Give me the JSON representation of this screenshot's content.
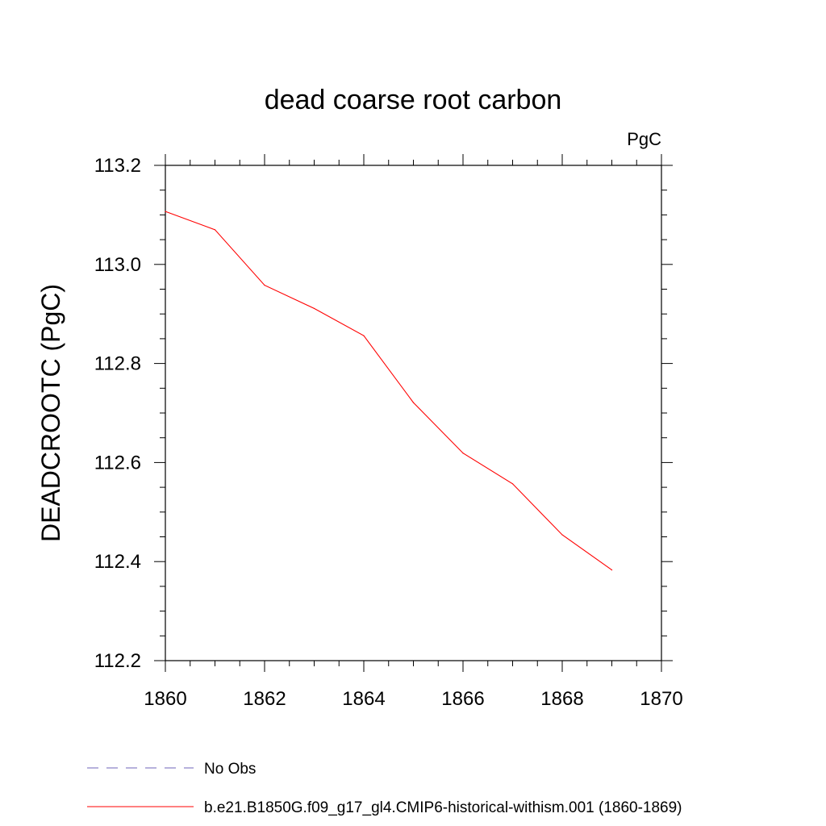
{
  "chart_data": {
    "type": "line",
    "title": "dead coarse root carbon",
    "units_label": "PgC",
    "xlabel": "",
    "ylabel": "DEADCROOTC  (PgC)",
    "xlim": [
      1860,
      1870
    ],
    "ylim": [
      112.2,
      113.2
    ],
    "x_ticks": [
      "1860",
      "1862",
      "1864",
      "1866",
      "1868",
      "1870"
    ],
    "y_ticks": [
      "112.2",
      "112.4",
      "112.6",
      "112.8",
      "113.0",
      "113.2"
    ],
    "grid": false,
    "legend_position": "bottom-left",
    "series": [
      {
        "name": "No Obs",
        "color": "#6f63b8",
        "dashed": true,
        "x": [],
        "values": []
      },
      {
        "name": "b.e21.B1850G.f09_g17_gl4.CMIP6-historical-withism.001 (1860-1869)",
        "color": "#ff0000",
        "dashed": false,
        "x": [
          1860,
          1861,
          1862,
          1863,
          1864,
          1865,
          1866,
          1867,
          1868,
          1869
        ],
        "values": [
          113.107,
          113.07,
          112.958,
          112.911,
          112.856,
          112.721,
          112.619,
          112.557,
          112.454,
          112.383
        ]
      }
    ]
  }
}
